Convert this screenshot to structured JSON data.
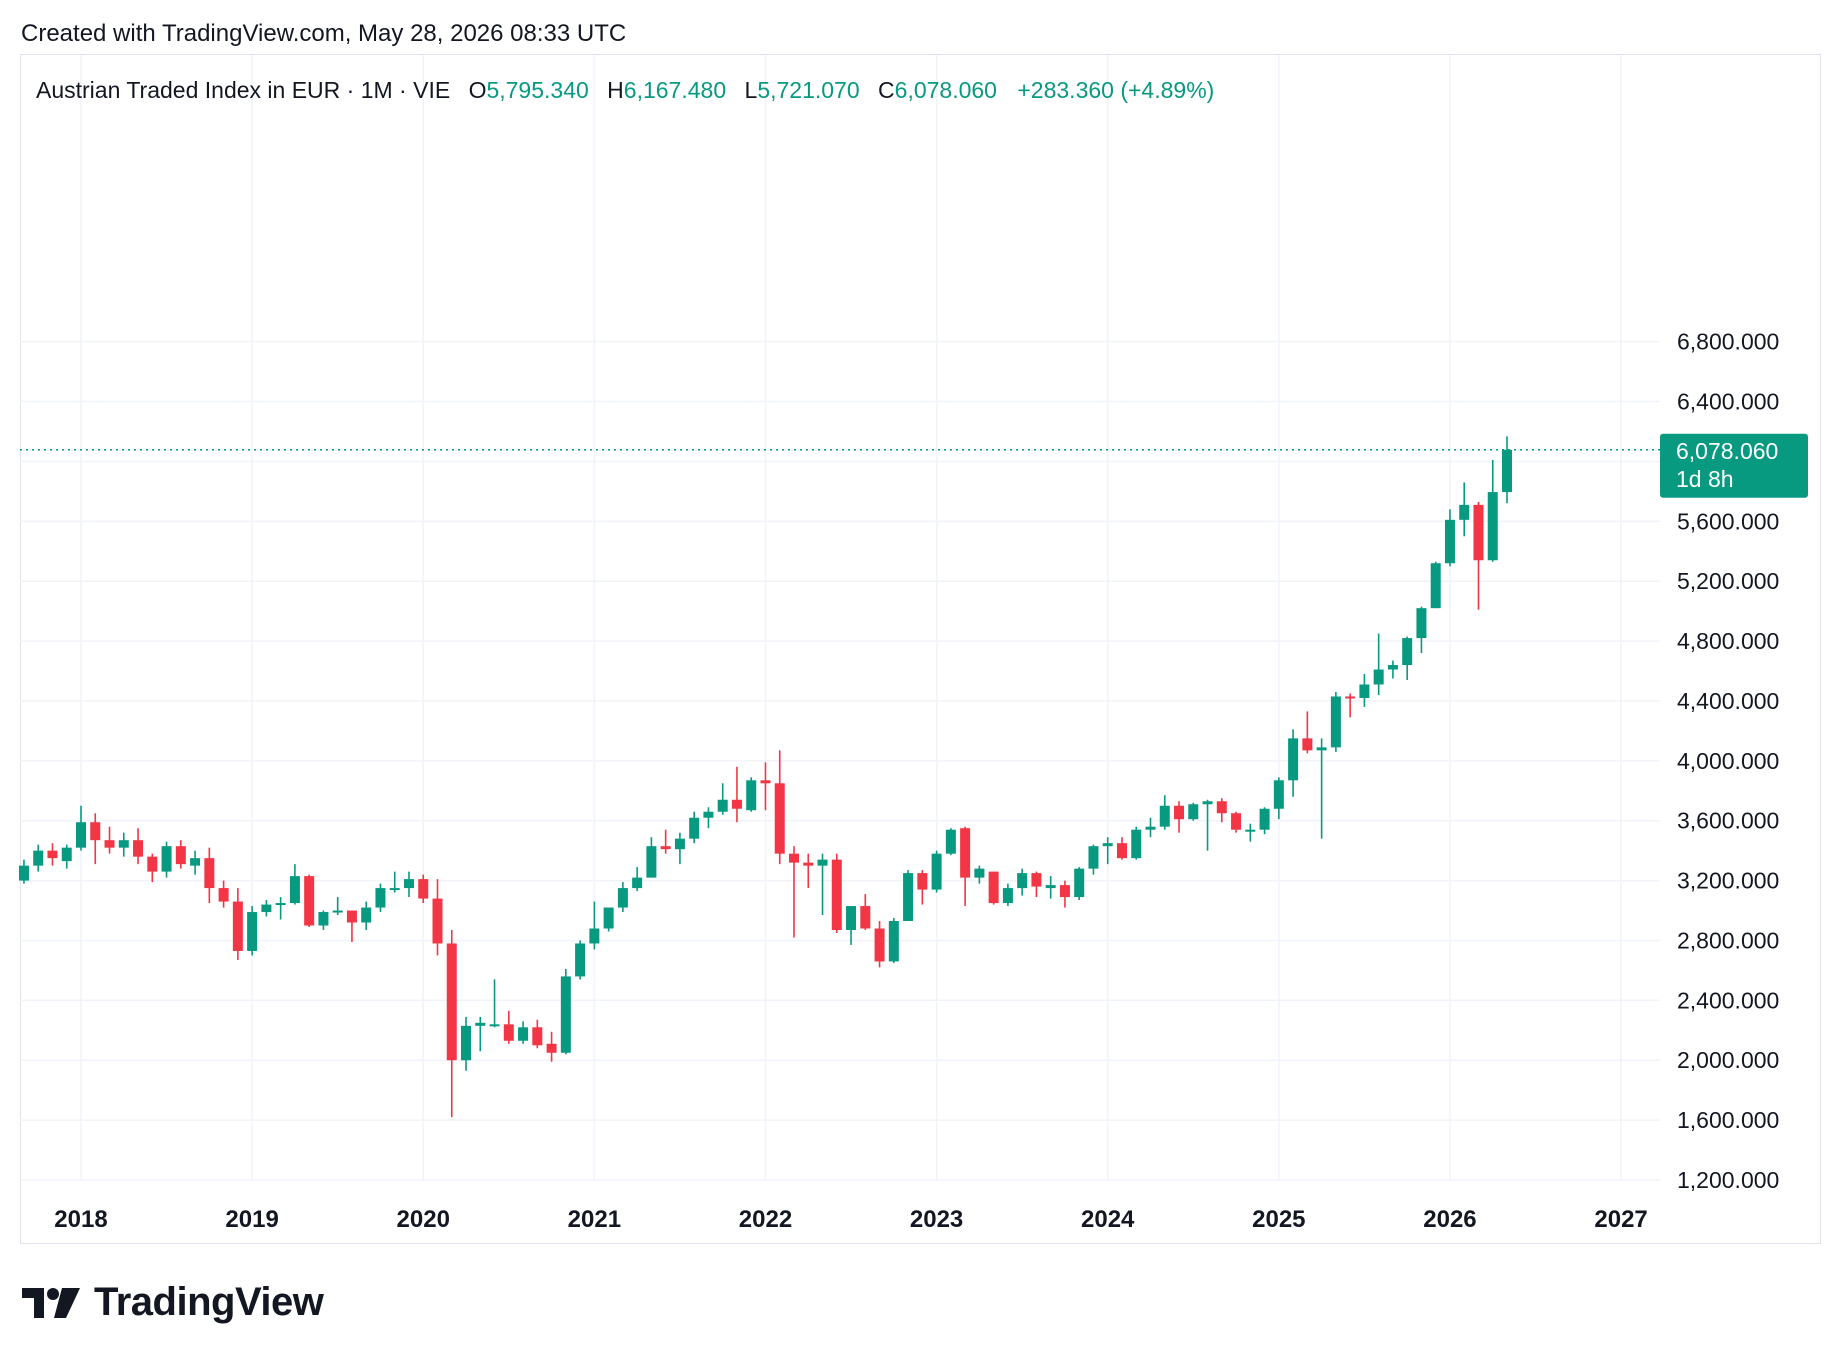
{
  "header": {
    "created_text": "Created with TradingView.com, May 28, 2026 08:33 UTC"
  },
  "legend": {
    "symbol": "Austrian Traded Index in EUR · 1M · VIE",
    "open_label": "O",
    "open": "5,795.340",
    "high_label": "H",
    "high": "6,167.480",
    "low_label": "L",
    "low": "5,721.070",
    "close_label": "C",
    "close": "6,078.060",
    "change": "+283.360 (+4.89%)"
  },
  "price_tag": {
    "price": "6,078.060",
    "countdown": "1d 8h"
  },
  "brand": {
    "name": "TradingView"
  },
  "colors": {
    "up": "#089981",
    "down": "#F23645",
    "grid": "#F0F3FA",
    "text": "#131722"
  },
  "chart_data": {
    "type": "candlestick",
    "interval": "1M",
    "ylim": [
      1200,
      6800
    ],
    "yticks": [
      6800,
      6400,
      5600,
      5200,
      4800,
      4400,
      4000,
      3600,
      3200,
      2800,
      2400,
      2000,
      1600,
      1200
    ],
    "ytick_labels": [
      "6,800.000",
      "6,400.000",
      "5,600.000",
      "5,200.000",
      "4,800.000",
      "4,400.000",
      "4,000.000",
      "3,600.000",
      "3,200.000",
      "2,800.000",
      "2,400.000",
      "2,000.000",
      "1,600.000",
      "1,200.000"
    ],
    "xticks": [
      "2018",
      "2019",
      "2020",
      "2021",
      "2022",
      "2023",
      "2024",
      "2025",
      "2026",
      "2027"
    ],
    "xlim": [
      "2017-09",
      "2027-02"
    ],
    "last_price_line": 6078.06,
    "candles": [
      {
        "t": "2017-09",
        "o": 3200,
        "h": 3340,
        "l": 3180,
        "c": 3300
      },
      {
        "t": "2017-10",
        "o": 3300,
        "h": 3440,
        "l": 3260,
        "c": 3400
      },
      {
        "t": "2017-11",
        "o": 3400,
        "h": 3450,
        "l": 3300,
        "c": 3350
      },
      {
        "t": "2017-12",
        "o": 3330,
        "h": 3440,
        "l": 3280,
        "c": 3420
      },
      {
        "t": "2018-01",
        "o": 3420,
        "h": 3700,
        "l": 3400,
        "c": 3590
      },
      {
        "t": "2018-02",
        "o": 3590,
        "h": 3650,
        "l": 3310,
        "c": 3470
      },
      {
        "t": "2018-03",
        "o": 3470,
        "h": 3560,
        "l": 3380,
        "c": 3420
      },
      {
        "t": "2018-04",
        "o": 3420,
        "h": 3520,
        "l": 3360,
        "c": 3470
      },
      {
        "t": "2018-05",
        "o": 3470,
        "h": 3550,
        "l": 3310,
        "c": 3360
      },
      {
        "t": "2018-06",
        "o": 3360,
        "h": 3380,
        "l": 3190,
        "c": 3260
      },
      {
        "t": "2018-07",
        "o": 3260,
        "h": 3460,
        "l": 3220,
        "c": 3430
      },
      {
        "t": "2018-08",
        "o": 3430,
        "h": 3470,
        "l": 3280,
        "c": 3310
      },
      {
        "t": "2018-09",
        "o": 3300,
        "h": 3400,
        "l": 3240,
        "c": 3350
      },
      {
        "t": "2018-10",
        "o": 3350,
        "h": 3420,
        "l": 3050,
        "c": 3150
      },
      {
        "t": "2018-11",
        "o": 3150,
        "h": 3200,
        "l": 3020,
        "c": 3060
      },
      {
        "t": "2018-12",
        "o": 3060,
        "h": 3150,
        "l": 2670,
        "c": 2730
      },
      {
        "t": "2019-01",
        "o": 2730,
        "h": 3030,
        "l": 2700,
        "c": 2990
      },
      {
        "t": "2019-02",
        "o": 2990,
        "h": 3070,
        "l": 2960,
        "c": 3040
      },
      {
        "t": "2019-03",
        "o": 3040,
        "h": 3090,
        "l": 2940,
        "c": 3050
      },
      {
        "t": "2019-04",
        "o": 3050,
        "h": 3310,
        "l": 3040,
        "c": 3230
      },
      {
        "t": "2019-05",
        "o": 3230,
        "h": 3240,
        "l": 2890,
        "c": 2900
      },
      {
        "t": "2019-06",
        "o": 2900,
        "h": 3000,
        "l": 2870,
        "c": 2990
      },
      {
        "t": "2019-07",
        "o": 2990,
        "h": 3090,
        "l": 2970,
        "c": 3000
      },
      {
        "t": "2019-08",
        "o": 3000,
        "h": 3000,
        "l": 2790,
        "c": 2920
      },
      {
        "t": "2019-09",
        "o": 2920,
        "h": 3060,
        "l": 2870,
        "c": 3020
      },
      {
        "t": "2019-10",
        "o": 3020,
        "h": 3180,
        "l": 2990,
        "c": 3150
      },
      {
        "t": "2019-11",
        "o": 3150,
        "h": 3260,
        "l": 3120,
        "c": 3150
      },
      {
        "t": "2019-12",
        "o": 3150,
        "h": 3260,
        "l": 3090,
        "c": 3210
      },
      {
        "t": "2020-01",
        "o": 3210,
        "h": 3240,
        "l": 3050,
        "c": 3080
      },
      {
        "t": "2020-02",
        "o": 3080,
        "h": 3210,
        "l": 2700,
        "c": 2780
      },
      {
        "t": "2020-03",
        "o": 2780,
        "h": 2870,
        "l": 1620,
        "c": 2000
      },
      {
        "t": "2020-04",
        "o": 2000,
        "h": 2290,
        "l": 1930,
        "c": 2230
      },
      {
        "t": "2020-05",
        "o": 2230,
        "h": 2290,
        "l": 2060,
        "c": 2250
      },
      {
        "t": "2020-06",
        "o": 2230,
        "h": 2540,
        "l": 2220,
        "c": 2240
      },
      {
        "t": "2020-07",
        "o": 2240,
        "h": 2330,
        "l": 2110,
        "c": 2130
      },
      {
        "t": "2020-08",
        "o": 2130,
        "h": 2260,
        "l": 2110,
        "c": 2220
      },
      {
        "t": "2020-09",
        "o": 2220,
        "h": 2270,
        "l": 2080,
        "c": 2100
      },
      {
        "t": "2020-10",
        "o": 2110,
        "h": 2190,
        "l": 1990,
        "c": 2050
      },
      {
        "t": "2020-11",
        "o": 2050,
        "h": 2610,
        "l": 2040,
        "c": 2560
      },
      {
        "t": "2020-12",
        "o": 2560,
        "h": 2800,
        "l": 2540,
        "c": 2780
      },
      {
        "t": "2021-01",
        "o": 2780,
        "h": 3060,
        "l": 2740,
        "c": 2880
      },
      {
        "t": "2021-02",
        "o": 2880,
        "h": 3010,
        "l": 2860,
        "c": 3020
      },
      {
        "t": "2021-03",
        "o": 3020,
        "h": 3190,
        "l": 2990,
        "c": 3150
      },
      {
        "t": "2021-04",
        "o": 3150,
        "h": 3290,
        "l": 3130,
        "c": 3220
      },
      {
        "t": "2021-05",
        "o": 3220,
        "h": 3490,
        "l": 3220,
        "c": 3430
      },
      {
        "t": "2021-06",
        "o": 3430,
        "h": 3540,
        "l": 3380,
        "c": 3410
      },
      {
        "t": "2021-07",
        "o": 3410,
        "h": 3520,
        "l": 3310,
        "c": 3480
      },
      {
        "t": "2021-08",
        "o": 3480,
        "h": 3660,
        "l": 3450,
        "c": 3620
      },
      {
        "t": "2021-09",
        "o": 3620,
        "h": 3690,
        "l": 3550,
        "c": 3660
      },
      {
        "t": "2021-10",
        "o": 3660,
        "h": 3850,
        "l": 3640,
        "c": 3740
      },
      {
        "t": "2021-11",
        "o": 3740,
        "h": 3960,
        "l": 3590,
        "c": 3680
      },
      {
        "t": "2021-12",
        "o": 3670,
        "h": 3890,
        "l": 3660,
        "c": 3870
      },
      {
        "t": "2022-01",
        "o": 3870,
        "h": 3990,
        "l": 3670,
        "c": 3850
      },
      {
        "t": "2022-02",
        "o": 3850,
        "h": 4070,
        "l": 3310,
        "c": 3380
      },
      {
        "t": "2022-03",
        "o": 3380,
        "h": 3430,
        "l": 2820,
        "c": 3320
      },
      {
        "t": "2022-04",
        "o": 3320,
        "h": 3380,
        "l": 3150,
        "c": 3300
      },
      {
        "t": "2022-05",
        "o": 3300,
        "h": 3380,
        "l": 2970,
        "c": 3340
      },
      {
        "t": "2022-06",
        "o": 3340,
        "h": 3380,
        "l": 2850,
        "c": 2870
      },
      {
        "t": "2022-07",
        "o": 2870,
        "h": 3020,
        "l": 2770,
        "c": 3030
      },
      {
        "t": "2022-08",
        "o": 3030,
        "h": 3110,
        "l": 2870,
        "c": 2880
      },
      {
        "t": "2022-09",
        "o": 2880,
        "h": 2930,
        "l": 2620,
        "c": 2660
      },
      {
        "t": "2022-10",
        "o": 2660,
        "h": 2950,
        "l": 2650,
        "c": 2930
      },
      {
        "t": "2022-11",
        "o": 2930,
        "h": 3270,
        "l": 2930,
        "c": 3250
      },
      {
        "t": "2022-12",
        "o": 3250,
        "h": 3270,
        "l": 3040,
        "c": 3140
      },
      {
        "t": "2023-01",
        "o": 3140,
        "h": 3400,
        "l": 3120,
        "c": 3380
      },
      {
        "t": "2023-02",
        "o": 3380,
        "h": 3550,
        "l": 3370,
        "c": 3540
      },
      {
        "t": "2023-03",
        "o": 3550,
        "h": 3560,
        "l": 3030,
        "c": 3220
      },
      {
        "t": "2023-04",
        "o": 3220,
        "h": 3300,
        "l": 3180,
        "c": 3280
      },
      {
        "t": "2023-05",
        "o": 3260,
        "h": 3260,
        "l": 3040,
        "c": 3050
      },
      {
        "t": "2023-06",
        "o": 3050,
        "h": 3180,
        "l": 3030,
        "c": 3150
      },
      {
        "t": "2023-07",
        "o": 3150,
        "h": 3280,
        "l": 3100,
        "c": 3250
      },
      {
        "t": "2023-08",
        "o": 3250,
        "h": 3260,
        "l": 3090,
        "c": 3160
      },
      {
        "t": "2023-09",
        "o": 3150,
        "h": 3230,
        "l": 3080,
        "c": 3170
      },
      {
        "t": "2023-10",
        "o": 3170,
        "h": 3200,
        "l": 3020,
        "c": 3090
      },
      {
        "t": "2023-11",
        "o": 3090,
        "h": 3290,
        "l": 3070,
        "c": 3280
      },
      {
        "t": "2023-12",
        "o": 3280,
        "h": 3440,
        "l": 3240,
        "c": 3430
      },
      {
        "t": "2024-01",
        "o": 3430,
        "h": 3490,
        "l": 3310,
        "c": 3450
      },
      {
        "t": "2024-02",
        "o": 3450,
        "h": 3490,
        "l": 3340,
        "c": 3350
      },
      {
        "t": "2024-03",
        "o": 3350,
        "h": 3560,
        "l": 3340,
        "c": 3540
      },
      {
        "t": "2024-04",
        "o": 3540,
        "h": 3620,
        "l": 3490,
        "c": 3560
      },
      {
        "t": "2024-05",
        "o": 3560,
        "h": 3770,
        "l": 3540,
        "c": 3700
      },
      {
        "t": "2024-06",
        "o": 3700,
        "h": 3730,
        "l": 3520,
        "c": 3610
      },
      {
        "t": "2024-07",
        "o": 3610,
        "h": 3720,
        "l": 3600,
        "c": 3710
      },
      {
        "t": "2024-08",
        "o": 3710,
        "h": 3740,
        "l": 3400,
        "c": 3730
      },
      {
        "t": "2024-09",
        "o": 3730,
        "h": 3750,
        "l": 3590,
        "c": 3650
      },
      {
        "t": "2024-10",
        "o": 3650,
        "h": 3660,
        "l": 3520,
        "c": 3540
      },
      {
        "t": "2024-11",
        "o": 3540,
        "h": 3580,
        "l": 3460,
        "c": 3540
      },
      {
        "t": "2024-12",
        "o": 3540,
        "h": 3690,
        "l": 3510,
        "c": 3680
      },
      {
        "t": "2025-01",
        "o": 3680,
        "h": 3890,
        "l": 3610,
        "c": 3870
      },
      {
        "t": "2025-02",
        "o": 3870,
        "h": 4210,
        "l": 3760,
        "c": 4150
      },
      {
        "t": "2025-03",
        "o": 4150,
        "h": 4330,
        "l": 4050,
        "c": 4070
      },
      {
        "t": "2025-04",
        "o": 4070,
        "h": 4150,
        "l": 3480,
        "c": 4090
      },
      {
        "t": "2025-05",
        "o": 4090,
        "h": 4460,
        "l": 4060,
        "c": 4430
      },
      {
        "t": "2025-06",
        "o": 4430,
        "h": 4450,
        "l": 4290,
        "c": 4420
      },
      {
        "t": "2025-07",
        "o": 4420,
        "h": 4580,
        "l": 4360,
        "c": 4510
      },
      {
        "t": "2025-08",
        "o": 4510,
        "h": 4850,
        "l": 4440,
        "c": 4610
      },
      {
        "t": "2025-09",
        "o": 4610,
        "h": 4670,
        "l": 4550,
        "c": 4640
      },
      {
        "t": "2025-10",
        "o": 4640,
        "h": 4830,
        "l": 4540,
        "c": 4820
      },
      {
        "t": "2025-11",
        "o": 4820,
        "h": 5030,
        "l": 4720,
        "c": 5020
      },
      {
        "t": "2025-12",
        "o": 5020,
        "h": 5330,
        "l": 5020,
        "c": 5320
      },
      {
        "t": "2026-01",
        "o": 5320,
        "h": 5680,
        "l": 5300,
        "c": 5610
      },
      {
        "t": "2026-02",
        "o": 5610,
        "h": 5860,
        "l": 5500,
        "c": 5710
      },
      {
        "t": "2026-03",
        "o": 5710,
        "h": 5730,
        "l": 5010,
        "c": 5340
      },
      {
        "t": "2026-04",
        "o": 5340,
        "h": 6010,
        "l": 5330,
        "c": 5795.34
      },
      {
        "t": "2026-05",
        "o": 5795.34,
        "h": 6167.48,
        "l": 5721.07,
        "c": 6078.06
      }
    ]
  }
}
